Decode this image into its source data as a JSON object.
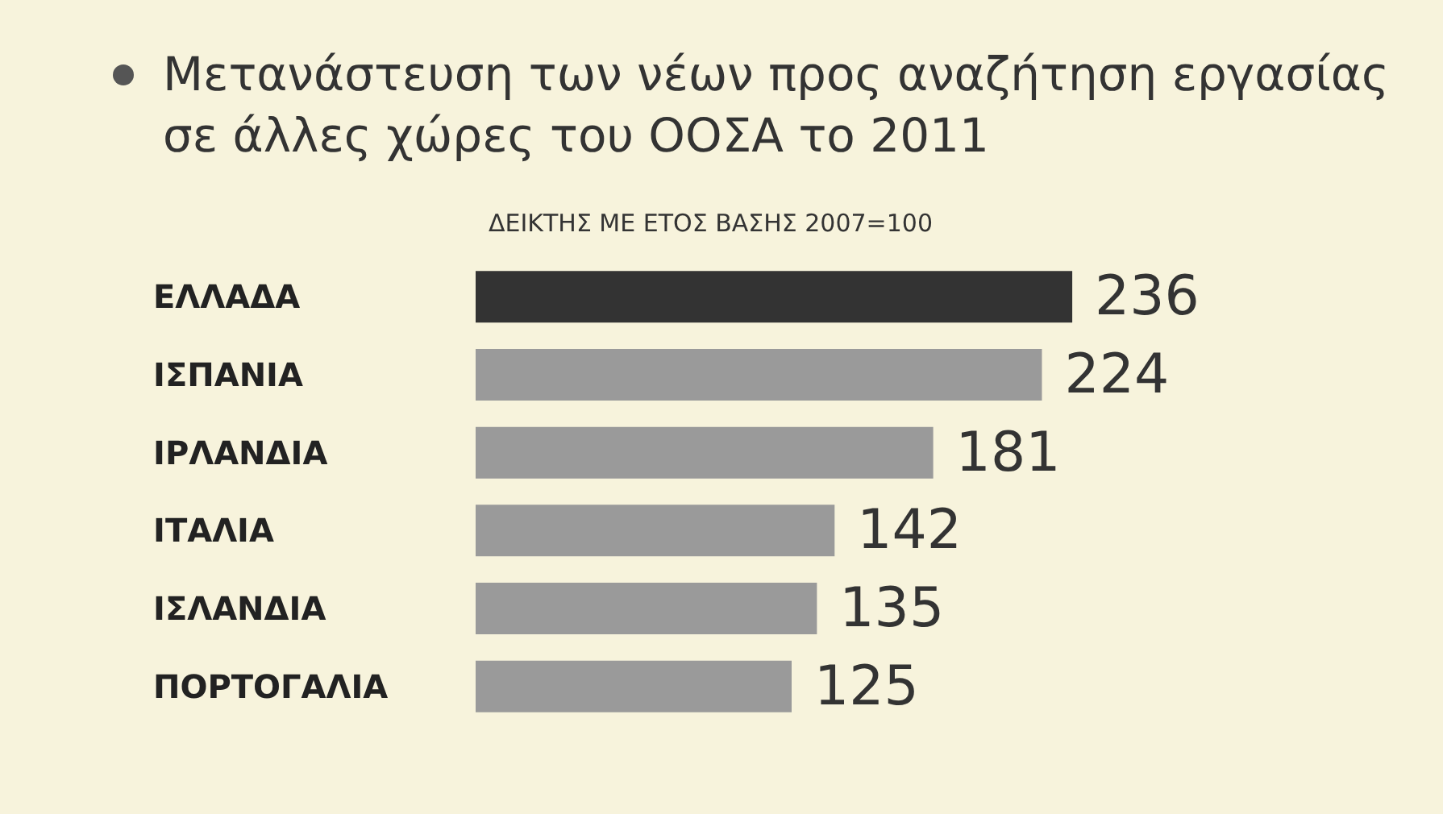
{
  "chart_data": {
    "type": "bar",
    "orientation": "horizontal",
    "title": "Μετανάστευση των νέων προς αναζήτηση εργασίας\nσε άλλες χώρες του ΟΟΣΑ το 2011",
    "subtitle": "ΔΕΙΚΤΗΣ ΜΕ ΕΤΟΣ ΒΑΣΗΣ 2007=100",
    "categories": [
      "ΕΛΛΑΔΑ",
      "ΙΣΠΑΝΙΑ",
      "ΙΡΛΑΝΔΙΑ",
      "ΙΤΑΛΙΑ",
      "ΙΣΛΑΝΔΙΑ",
      "ΠΟΡΤΟΓΑΛΙΑ"
    ],
    "values": [
      236,
      224,
      181,
      142,
      135,
      125
    ],
    "colors": [
      "#333333",
      "#9a9a9a",
      "#9a9a9a",
      "#9a9a9a",
      "#9a9a9a",
      "#9a9a9a"
    ],
    "data_labels": true
  }
}
